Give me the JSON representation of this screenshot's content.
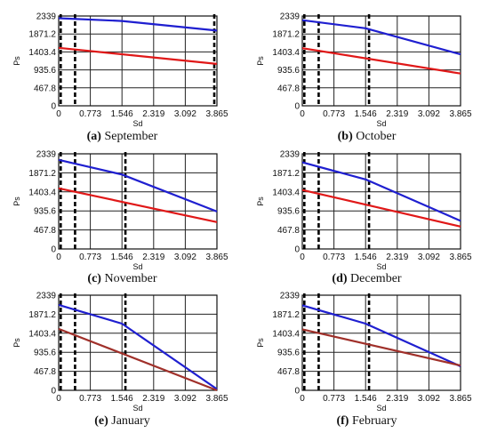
{
  "chart_data": [
    {
      "type": "line",
      "caption_letter": "(a)",
      "caption_text": "September",
      "xlabel": "Sd",
      "ylabel": "Ps",
      "xlim": [
        0,
        3.865
      ],
      "ylim": [
        0,
        2339
      ],
      "xticks": [
        "0",
        "0.773",
        "1.546",
        "2.319",
        "3.092",
        "3.865"
      ],
      "yticks": [
        "0",
        "467.8",
        "935.6",
        "1403.4",
        "1871.2",
        "2339"
      ],
      "grid": true,
      "vlines": [
        0.05,
        0.4,
        3.8
      ],
      "series": [
        {
          "color": "#1f1fd0",
          "x": [
            0,
            1.546,
            3.865
          ],
          "y": [
            2280,
            2210,
            1960
          ]
        },
        {
          "color": "#e01818",
          "x": [
            0,
            3.865
          ],
          "y": [
            1510,
            1090
          ]
        }
      ]
    },
    {
      "type": "line",
      "caption_letter": "(b)",
      "caption_text": "October",
      "xlabel": "Sd",
      "ylabel": "Ps",
      "xlim": [
        0,
        3.865
      ],
      "ylim": [
        0,
        2339
      ],
      "xticks": [
        "0",
        "0.773",
        "1.546",
        "2.319",
        "3.092",
        "3.865"
      ],
      "yticks": [
        "0",
        "467.8",
        "935.6",
        "1403.4",
        "1871.2",
        "2339"
      ],
      "grid": true,
      "vlines": [
        0.05,
        0.4,
        1.63
      ],
      "series": [
        {
          "color": "#1f1fd0",
          "x": [
            0,
            1.546,
            3.865
          ],
          "y": [
            2230,
            2020,
            1340
          ]
        },
        {
          "color": "#e01818",
          "x": [
            0,
            3.865
          ],
          "y": [
            1500,
            840
          ]
        }
      ]
    },
    {
      "type": "line",
      "caption_letter": "(c)",
      "caption_text": "November",
      "xlabel": "Sd",
      "ylabel": "Ps",
      "xlim": [
        0,
        3.865
      ],
      "ylim": [
        0,
        2339
      ],
      "xticks": [
        "0",
        "0.773",
        "1.546",
        "2.319",
        "3.092",
        "3.865"
      ],
      "yticks": [
        "0",
        "467.8",
        "935.6",
        "1403.4",
        "1871.2",
        "2339"
      ],
      "grid": true,
      "vlines": [
        0.05,
        0.4,
        1.63
      ],
      "series": [
        {
          "color": "#1f1fd0",
          "x": [
            0,
            1.546,
            3.865
          ],
          "y": [
            2190,
            1830,
            920
          ]
        },
        {
          "color": "#e01818",
          "x": [
            0,
            3.865
          ],
          "y": [
            1490,
            660
          ]
        }
      ]
    },
    {
      "type": "line",
      "caption_letter": "(d)",
      "caption_text": "December",
      "xlabel": "Sd",
      "ylabel": "Ps",
      "xlim": [
        0,
        3.865
      ],
      "ylim": [
        0,
        2339
      ],
      "xticks": [
        "0",
        "0.773",
        "1.546",
        "2.319",
        "3.092",
        "3.865"
      ],
      "yticks": [
        "0",
        "467.8",
        "935.6",
        "1403.4",
        "1871.2",
        "2339"
      ],
      "grid": true,
      "vlines": [
        0.05,
        0.4,
        1.63
      ],
      "series": [
        {
          "color": "#1f1fd0",
          "x": [
            0,
            1.546,
            3.865
          ],
          "y": [
            2130,
            1710,
            690
          ]
        },
        {
          "color": "#e01818",
          "x": [
            0,
            3.865
          ],
          "y": [
            1450,
            550
          ]
        }
      ]
    },
    {
      "type": "line",
      "caption_letter": "(e)",
      "caption_text": "January",
      "xlabel": "Sd",
      "ylabel": "Ps",
      "xlim": [
        0,
        3.865
      ],
      "ylim": [
        0,
        2339
      ],
      "xticks": [
        "0",
        "0.773",
        "1.546",
        "2.319",
        "3.092",
        "3.865"
      ],
      "yticks": [
        "0",
        "467.8",
        "935.6",
        "1403.4",
        "1871.2",
        "2339"
      ],
      "grid": true,
      "vlines": [
        0.05,
        0.4,
        1.63
      ],
      "series": [
        {
          "color": "#1f1fd0",
          "x": [
            0,
            1.546,
            3.865
          ],
          "y": [
            2100,
            1640,
            30
          ]
        },
        {
          "color": "#a0302a",
          "x": [
            0,
            3.865
          ],
          "y": [
            1510,
            0
          ]
        }
      ]
    },
    {
      "type": "line",
      "caption_letter": "(f)",
      "caption_text": "February",
      "xlabel": "Sd",
      "ylabel": "Ps",
      "xlim": [
        0,
        3.865
      ],
      "ylim": [
        0,
        2339
      ],
      "xticks": [
        "0",
        "0.773",
        "1.546",
        "2.319",
        "3.092",
        "3.865"
      ],
      "yticks": [
        "0",
        "467.8",
        "935.6",
        "1403.4",
        "1871.2",
        "2339"
      ],
      "grid": true,
      "vlines": [
        0.05,
        0.4,
        1.63
      ],
      "series": [
        {
          "color": "#1f1fd0",
          "x": [
            0,
            1.546,
            3.865
          ],
          "y": [
            2090,
            1640,
            590
          ]
        },
        {
          "color": "#a0302a",
          "x": [
            0,
            3.865
          ],
          "y": [
            1500,
            610
          ]
        }
      ]
    }
  ]
}
